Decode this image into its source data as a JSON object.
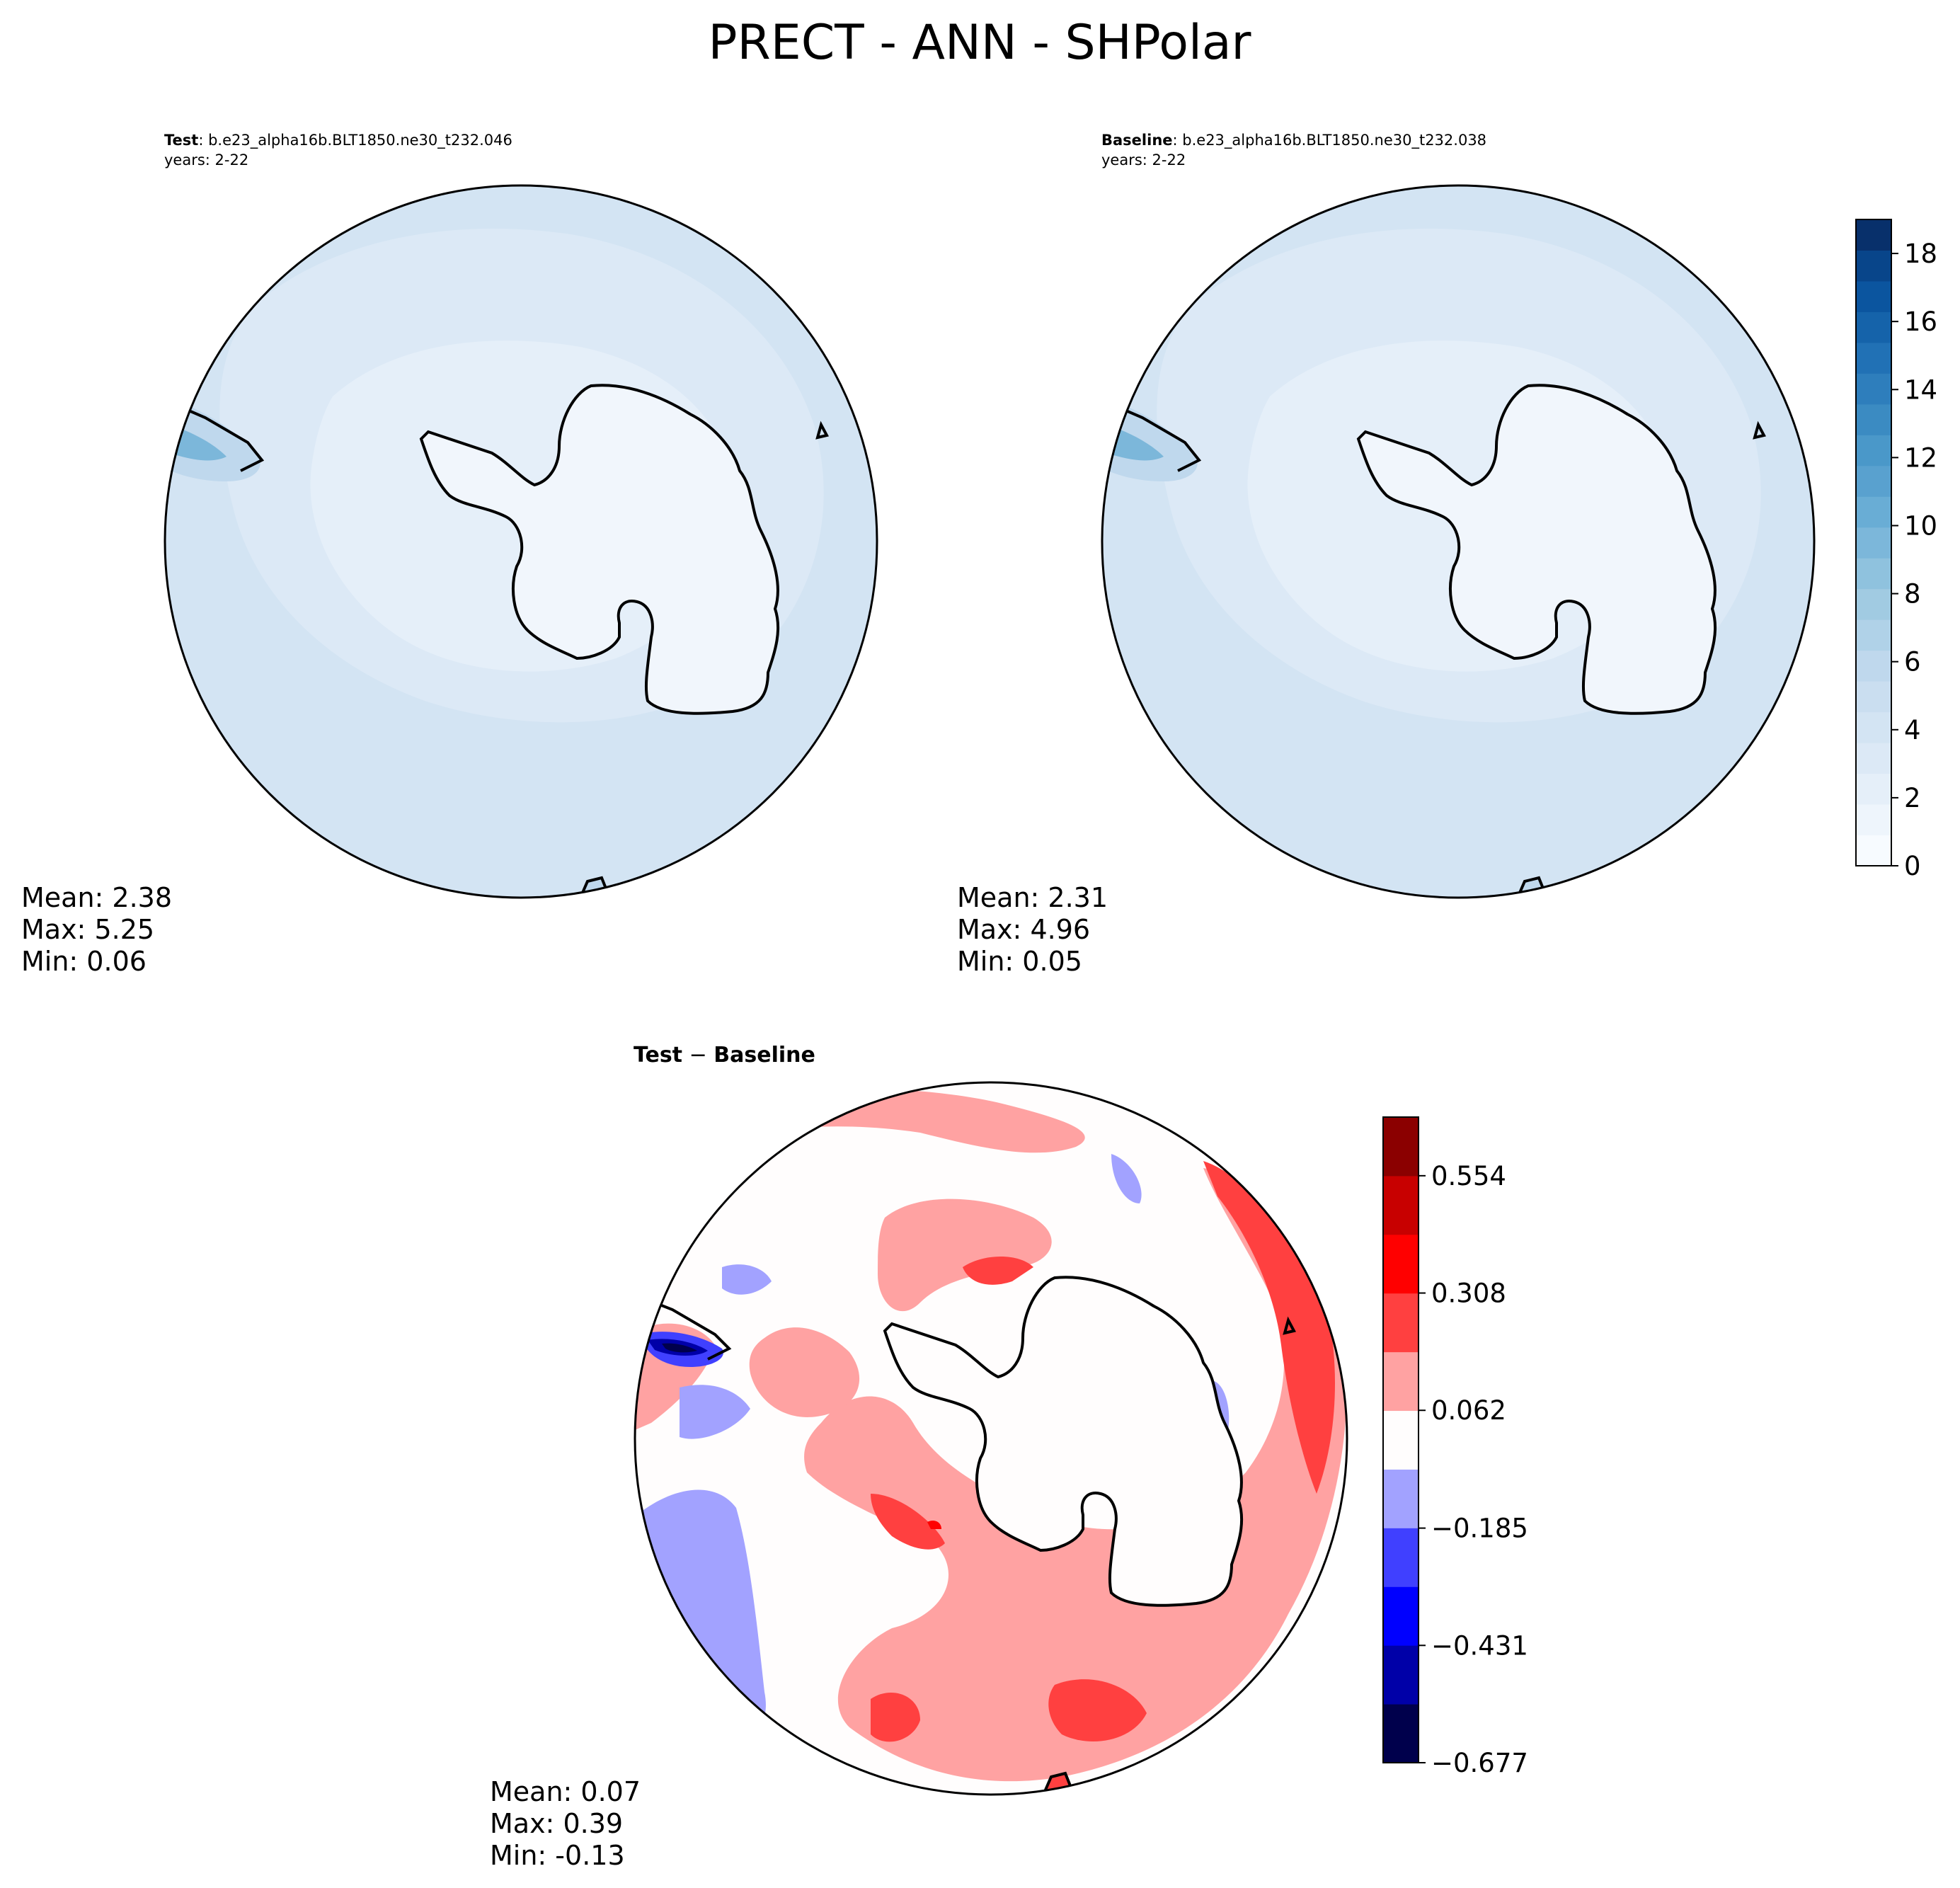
{
  "figure": {
    "title": "PRECT - ANN - SHPolar"
  },
  "panels": {
    "test": {
      "label_bold": "Test",
      "label_rest": ": b.e23_alpha16b.BLT1850.ne30_t232.046",
      "years": "years: 2-22",
      "stats": {
        "mean": "Mean:  2.38",
        "max": "Max:  5.25",
        "min": "Min:  0.06"
      }
    },
    "baseline": {
      "label_bold": "Baseline",
      "label_rest": ": b.e23_alpha16b.BLT1850.ne30_t232.038",
      "years": "years: 2-22",
      "stats": {
        "mean": "Mean:  2.31",
        "max": "Max:  4.96",
        "min": "Min:  0.05"
      }
    },
    "diff": {
      "label_bold": "Test",
      "label_sep": " − ",
      "label_bold2": "Baseline",
      "stats": {
        "mean": "Mean:  0.07",
        "max": "Max:  0.39",
        "min": "Min: -0.13"
      }
    }
  },
  "colorbars": {
    "blues": {
      "ticks": [
        "0",
        "2",
        "4",
        "6",
        "8",
        "10",
        "12",
        "14",
        "16",
        "18"
      ],
      "tick_values": [
        0,
        2,
        4,
        6,
        8,
        10,
        12,
        14,
        16,
        18
      ],
      "range": [
        0,
        19
      ],
      "colors": [
        "#f7fbff",
        "#eef5fc",
        "#e5eff9",
        "#dce9f6",
        "#d3e4f3",
        "#cadef0",
        "#bfd8ed",
        "#b0d2e8",
        "#a1cbe2",
        "#8fc2de",
        "#7cb7da",
        "#69add5",
        "#59a1cf",
        "#4a98c9",
        "#3b8bc2",
        "#2e7ebc",
        "#2171b5",
        "#1563aa",
        "#0b559f",
        "#08458a",
        "#08306b"
      ]
    },
    "diff": {
      "ticks": [
        "0.554",
        "0.308",
        "0.062",
        "−0.185",
        "−0.431",
        "−0.677"
      ],
      "tick_values": [
        0.554,
        0.308,
        0.062,
        -0.185,
        -0.431,
        -0.677
      ],
      "range": [
        -0.677,
        0.677
      ],
      "colors": [
        "#00004c",
        "#0000a8",
        "#0000ff",
        "#4040ff",
        "#a2a2ff",
        "#fffdfd",
        "#ffa2a2",
        "#ff4040",
        "#ff0000",
        "#c80000",
        "#8b0000"
      ]
    }
  },
  "chart_data": [
    {
      "type": "heatmap",
      "title": "Test : b.e23_alpha16b.BLT1850.ne30_t232.046",
      "subtitle": "years: 2-22",
      "projection": "south polar stereographic",
      "variable": "PRECT",
      "colorbar_range": [
        0,
        19
      ],
      "stats": {
        "mean": 2.38,
        "max": 5.25,
        "min": 0.06
      }
    },
    {
      "type": "heatmap",
      "title": "Baseline : b.e23_alpha16b.BLT1850.ne30_t232.038",
      "subtitle": "years: 2-22",
      "projection": "south polar stereographic",
      "variable": "PRECT",
      "colorbar_ticks": [
        0,
        2,
        4,
        6,
        8,
        10,
        12,
        14,
        16,
        18
      ],
      "colorbar_range": [
        0,
        19
      ],
      "stats": {
        "mean": 2.31,
        "max": 4.96,
        "min": 0.05
      }
    },
    {
      "type": "heatmap",
      "title": "Test − Baseline",
      "projection": "south polar stereographic",
      "variable": "PRECT difference",
      "colorbar_ticks": [
        -0.677,
        -0.431,
        -0.185,
        0.062,
        0.308,
        0.554
      ],
      "colorbar_range": [
        -0.677,
        0.677
      ],
      "stats": {
        "mean": 0.07,
        "max": 0.39,
        "min": -0.13
      }
    }
  ]
}
